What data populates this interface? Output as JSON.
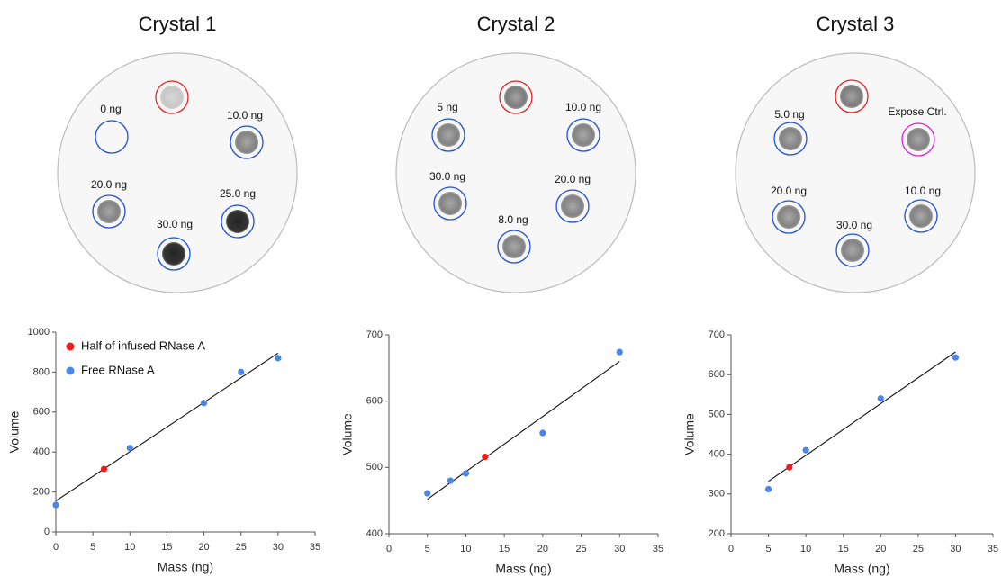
{
  "blots": [
    {
      "title": "Crystal 1",
      "labels": [
        "0 ng",
        "10.0 ng",
        "20.0 ng",
        "25.0 ng",
        "30.0 ng"
      ]
    },
    {
      "title": "Crystal 2",
      "labels": [
        "5 ng",
        "10.0 ng",
        "30.0 ng",
        "20.0 ng",
        "8.0 ng"
      ]
    },
    {
      "title": "Crystal 3",
      "labels": [
        "5.0 ng",
        "Expose Ctrl.",
        "20.0 ng",
        "10.0 ng",
        "30.0 ng"
      ]
    }
  ],
  "chart_data": [
    {
      "type": "scatter",
      "xlabel": "Mass (ng)",
      "ylabel": "Volume",
      "xlim": [
        0,
        35
      ],
      "xticks": [
        0,
        5,
        10,
        15,
        20,
        25,
        30,
        35
      ],
      "ylim": [
        0,
        1000
      ],
      "yticks": [
        0,
        200,
        400,
        600,
        800,
        1000
      ],
      "legend": "upper left",
      "series": [
        {
          "name": "Half of infused RNase A",
          "color": "#ee1c1c",
          "x": [
            6.5
          ],
          "values": [
            315
          ]
        },
        {
          "name": "Free RNase A",
          "color": "#4a86e8",
          "x": [
            0,
            10,
            20,
            25,
            30
          ],
          "values": [
            135,
            420,
            645,
            800,
            870
          ]
        }
      ],
      "trendline": {
        "x": [
          0,
          30
        ],
        "y": [
          155,
          895
        ]
      }
    },
    {
      "type": "scatter",
      "xlabel": "Mass (ng)",
      "ylabel": "Volume",
      "xlim": [
        0,
        35
      ],
      "xticks": [
        0,
        5,
        10,
        15,
        20,
        25,
        30,
        35
      ],
      "ylim": [
        400,
        700
      ],
      "yticks": [
        400,
        500,
        600,
        700
      ],
      "series": [
        {
          "color": "#ee1c1c",
          "x": [
            12.5
          ],
          "values": [
            516
          ]
        },
        {
          "color": "#4a86e8",
          "x": [
            5,
            8,
            10,
            20,
            30
          ],
          "values": [
            461,
            480,
            491,
            552,
            674
          ]
        }
      ],
      "trendline": {
        "x": [
          5,
          30
        ],
        "y": [
          452,
          660
        ]
      }
    },
    {
      "type": "scatter",
      "xlabel": "Mass (ng)",
      "ylabel": "Volume",
      "xlim": [
        0,
        35
      ],
      "xticks": [
        0,
        5,
        10,
        15,
        20,
        25,
        30,
        35
      ],
      "ylim": [
        200,
        700
      ],
      "yticks": [
        200,
        300,
        400,
        500,
        600,
        700
      ],
      "series": [
        {
          "color": "#ee1c1c",
          "x": [
            7.8
          ],
          "values": [
            367
          ]
        },
        {
          "color": "#4a86e8",
          "x": [
            5,
            10,
            20,
            30
          ],
          "values": [
            312,
            410,
            540,
            643
          ]
        }
      ],
      "trendline": {
        "x": [
          5,
          30
        ],
        "y": [
          332,
          657
        ]
      }
    }
  ]
}
